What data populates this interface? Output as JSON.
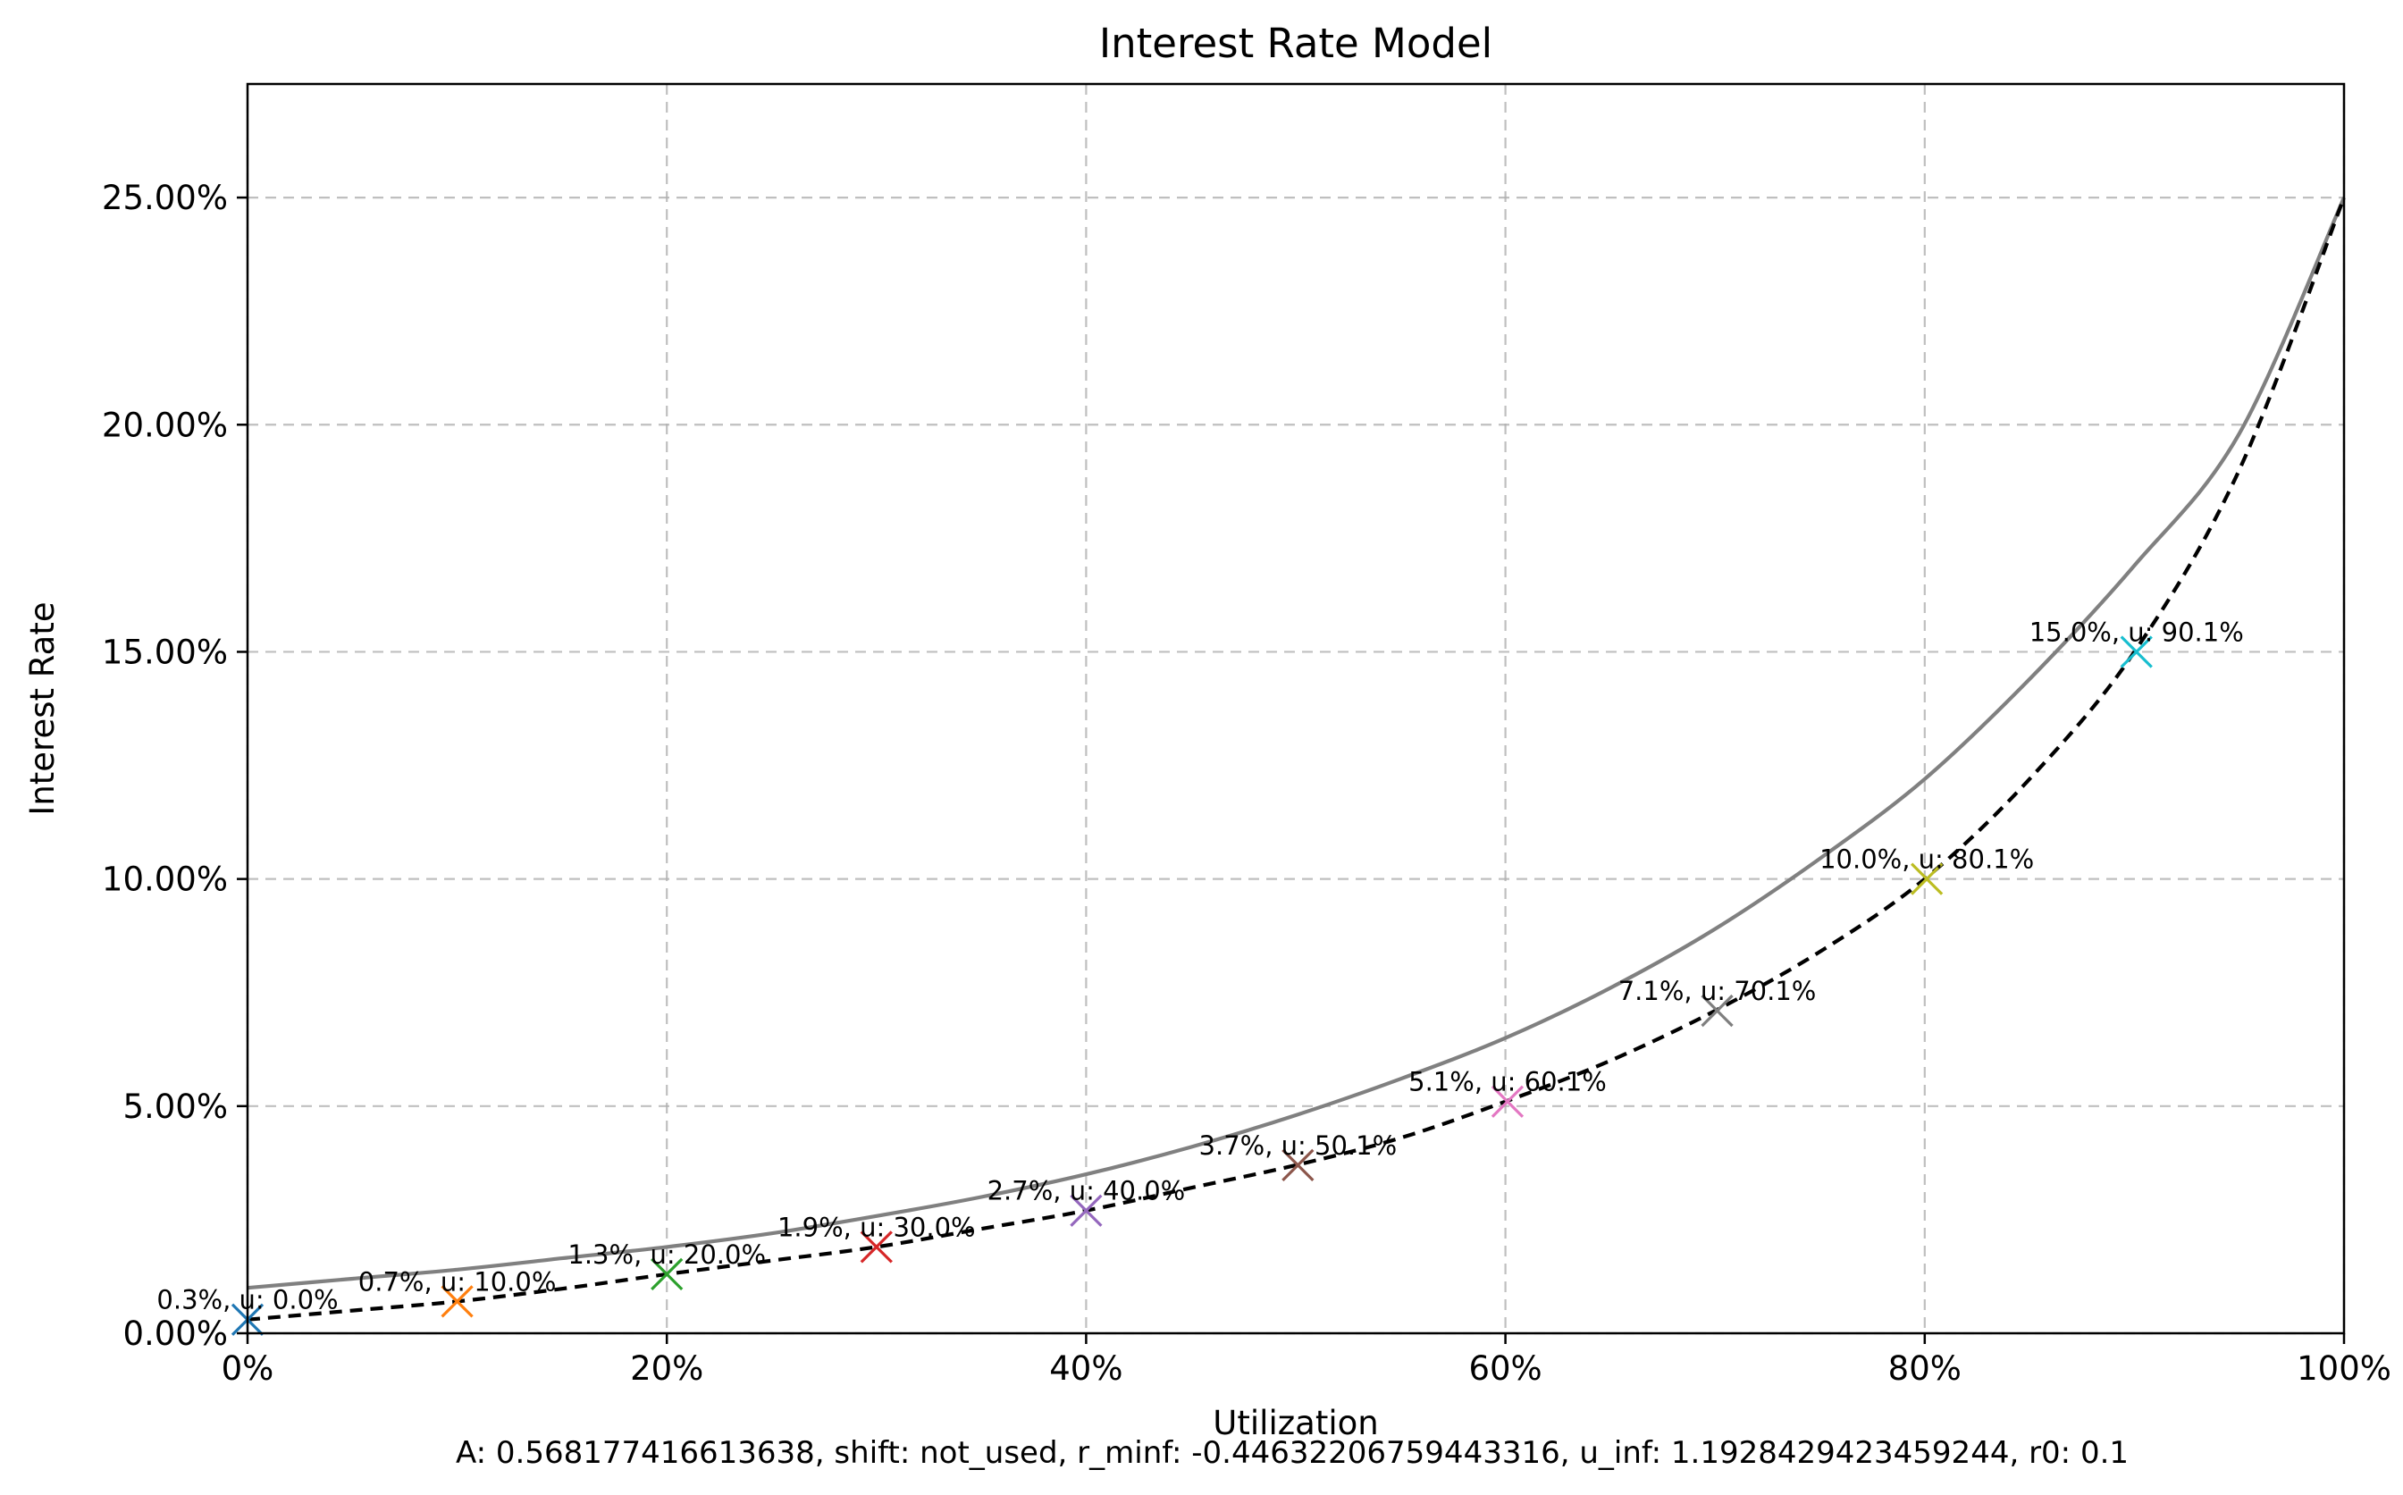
{
  "chart_data": {
    "type": "line",
    "title": "Interest Rate Model",
    "xlabel": "Utilization",
    "ylabel": "Interest Rate",
    "xlim": [
      0,
      1
    ],
    "ylim": [
      0,
      0.275
    ],
    "grid": true,
    "x_ticks": [
      {
        "value": 0.0,
        "label": "0%"
      },
      {
        "value": 0.2,
        "label": "20%"
      },
      {
        "value": 0.4,
        "label": "40%"
      },
      {
        "value": 0.6,
        "label": "60%"
      },
      {
        "value": 0.8,
        "label": "80%"
      },
      {
        "value": 1.0,
        "label": "100%"
      }
    ],
    "y_ticks": [
      {
        "value": 0.0,
        "label": "0.00%"
      },
      {
        "value": 0.05,
        "label": "5.00%"
      },
      {
        "value": 0.1,
        "label": "10.00%"
      },
      {
        "value": 0.15,
        "label": "15.00%"
      },
      {
        "value": 0.2,
        "label": "20.00%"
      },
      {
        "value": 0.25,
        "label": "25.00%"
      }
    ],
    "series": [
      {
        "style": "solid",
        "color": "#808080",
        "x": [
          0.0,
          0.05,
          0.1,
          0.15,
          0.2,
          0.25,
          0.3,
          0.35,
          0.4,
          0.45,
          0.5,
          0.55,
          0.6,
          0.65,
          0.7,
          0.75,
          0.8,
          0.85,
          0.9,
          0.95,
          1.0
        ],
        "y": [
          0.01,
          0.012,
          0.014,
          0.0165,
          0.019,
          0.022,
          0.0258,
          0.03,
          0.035,
          0.041,
          0.048,
          0.056,
          0.065,
          0.076,
          0.089,
          0.1045,
          0.122,
          0.144,
          0.169,
          0.198,
          0.25
        ]
      },
      {
        "style": "dashed",
        "color": "#000000",
        "x": [
          0.0,
          0.05,
          0.1,
          0.15,
          0.2,
          0.25,
          0.3,
          0.35,
          0.4,
          0.45,
          0.5,
          0.55,
          0.6,
          0.65,
          0.7,
          0.75,
          0.8,
          0.85,
          0.9,
          0.95,
          1.0
        ],
        "y": [
          0.003,
          0.005,
          0.007,
          0.0098,
          0.013,
          0.016,
          0.019,
          0.023,
          0.027,
          0.032,
          0.037,
          0.043,
          0.051,
          0.06,
          0.071,
          0.084,
          0.1,
          0.122,
          0.15,
          0.19,
          0.25
        ]
      }
    ],
    "markers": [
      {
        "x": 0.0,
        "y": 0.003,
        "label": "0.3%, u: 0.0%",
        "color": "#1f77b4"
      },
      {
        "x": 0.1,
        "y": 0.007,
        "label": "0.7%, u: 10.0%",
        "color": "#ff7f0e"
      },
      {
        "x": 0.2,
        "y": 0.013,
        "label": "1.3%, u: 20.0%",
        "color": "#2ca02c"
      },
      {
        "x": 0.3,
        "y": 0.019,
        "label": "1.9%, u: 30.0%",
        "color": "#d62728"
      },
      {
        "x": 0.4,
        "y": 0.027,
        "label": "2.7%, u: 40.0%",
        "color": "#9467bd"
      },
      {
        "x": 0.501,
        "y": 0.037,
        "label": "3.7%, u: 50.1%",
        "color": "#8c564b"
      },
      {
        "x": 0.601,
        "y": 0.051,
        "label": "5.1%, u: 60.1%",
        "color": "#e377c2"
      },
      {
        "x": 0.701,
        "y": 0.071,
        "label": "7.1%, u: 70.1%",
        "color": "#7f7f7f"
      },
      {
        "x": 0.801,
        "y": 0.1,
        "label": "10.0%, u: 80.1%",
        "color": "#bcbd22"
      },
      {
        "x": 0.901,
        "y": 0.15,
        "label": "15.0%, u: 90.1%",
        "color": "#17becf"
      }
    ],
    "footnote": "A: 0.568177416613638, shift: not_used, r_minf: -0.44632206759443316, u_inf: 1.1928429423459244, r0: 0.1"
  }
}
